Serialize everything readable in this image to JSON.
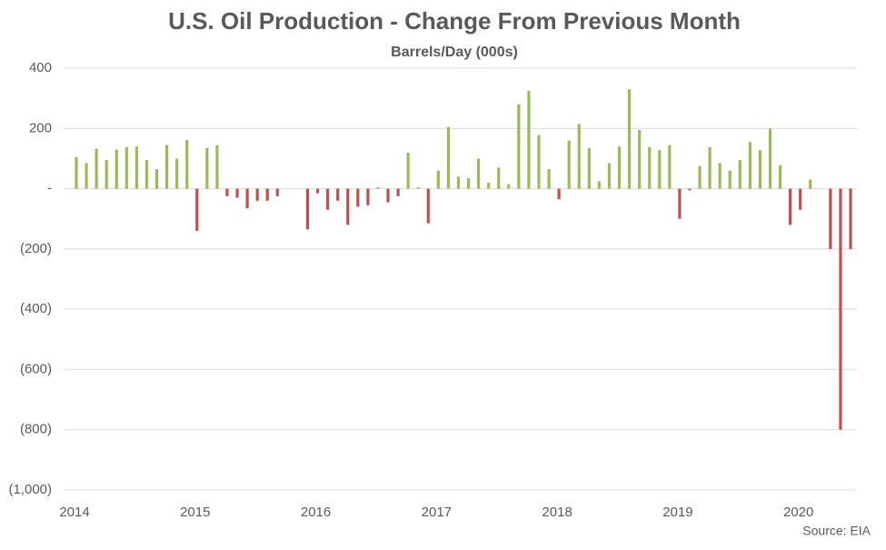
{
  "chart_data": {
    "type": "bar",
    "title": "U.S. Oil Production - Change From Previous Month",
    "subtitle": "Barrels/Day (000s)",
    "source": "Source: EIA",
    "categories": [
      "2014",
      null,
      null,
      null,
      null,
      null,
      null,
      null,
      null,
      null,
      null,
      null,
      "2015",
      null,
      null,
      null,
      null,
      null,
      null,
      null,
      null,
      null,
      null,
      null,
      "2016",
      null,
      null,
      null,
      null,
      null,
      null,
      null,
      null,
      null,
      null,
      null,
      "2017",
      null,
      null,
      null,
      null,
      null,
      null,
      null,
      null,
      null,
      null,
      null,
      "2018",
      null,
      null,
      null,
      null,
      null,
      null,
      null,
      null,
      null,
      null,
      null,
      "2019",
      null,
      null,
      null,
      null,
      null,
      null,
      null,
      null,
      null,
      null,
      null,
      "2020",
      null,
      null,
      null,
      null,
      null
    ],
    "values": [
      105,
      85,
      133,
      95,
      130,
      138,
      140,
      95,
      65,
      145,
      100,
      162,
      -140,
      135,
      145,
      -25,
      -30,
      -65,
      -40,
      -40,
      -25,
      0,
      0,
      -135,
      -15,
      -70,
      -40,
      -120,
      -60,
      -55,
      5,
      -45,
      -25,
      120,
      5,
      -115,
      60,
      205,
      40,
      35,
      100,
      20,
      70,
      15,
      280,
      325,
      178,
      65,
      -35,
      160,
      215,
      135,
      25,
      85,
      140,
      330,
      195,
      138,
      128,
      145,
      -100,
      -5,
      75,
      138,
      85,
      60,
      95,
      155,
      128,
      200,
      78,
      -120,
      -70,
      30,
      0,
      -200,
      -800,
      -200
    ],
    "positive_color": "#9bbb59",
    "negative_color": "#c0504d",
    "ylim": [
      -1000,
      400
    ],
    "yticks": [
      {
        "value": -1000,
        "label": "(1,000)"
      },
      {
        "value": -800,
        "label": "(800)"
      },
      {
        "value": -600,
        "label": "(600)"
      },
      {
        "value": -400,
        "label": "(400)"
      },
      {
        "value": -200,
        "label": "(200)"
      },
      {
        "value": 0,
        "label": "-"
      },
      200,
      400
    ],
    "grid": true
  }
}
